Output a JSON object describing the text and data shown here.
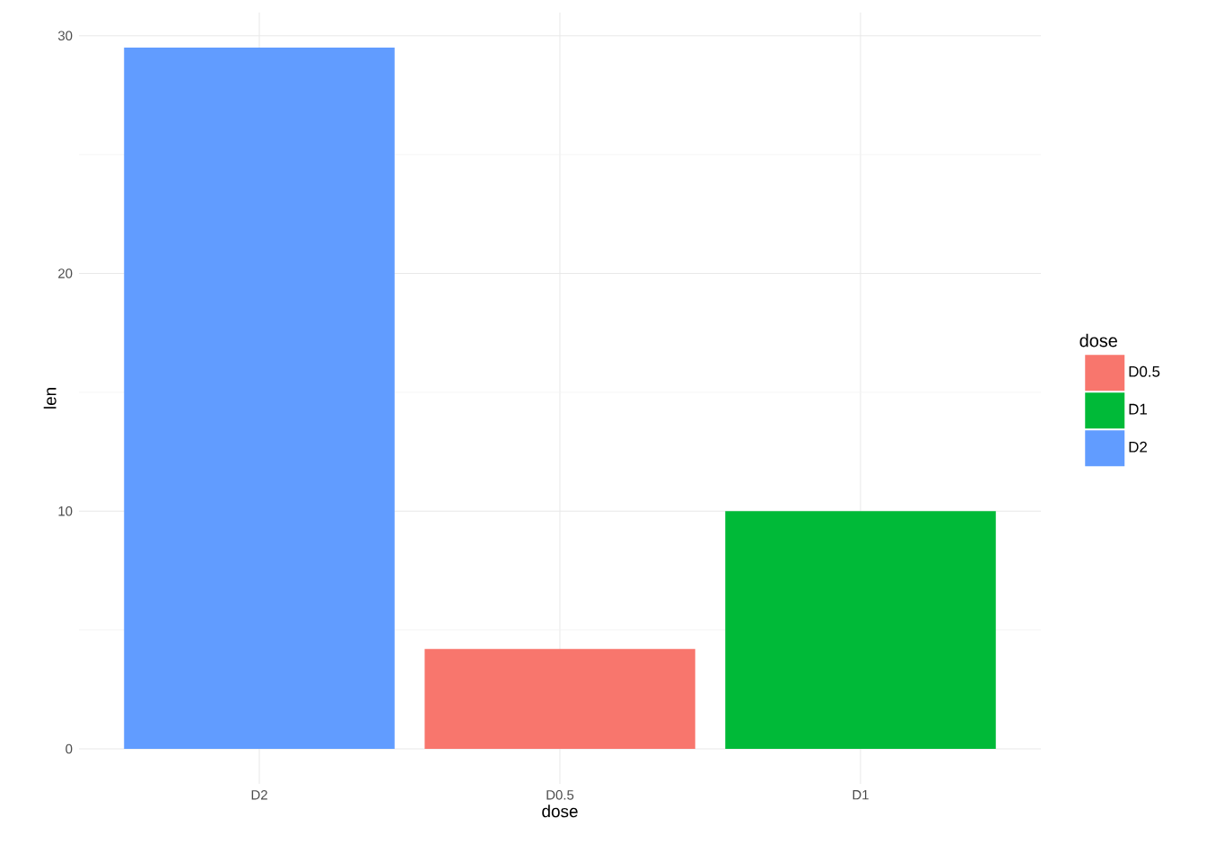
{
  "chart_data": {
    "type": "bar",
    "xlabel": "dose",
    "ylabel": "len",
    "legend_title": "dose",
    "categories": [
      "D2",
      "D0.5",
      "D1"
    ],
    "series": [
      {
        "name": "D0.5",
        "color": "#f8766d",
        "values": [
          null,
          4.2,
          null
        ]
      },
      {
        "name": "D1",
        "color": "#00ba38",
        "values": [
          null,
          null,
          10
        ]
      },
      {
        "name": "D2",
        "color": "#619cff",
        "values": [
          29.5,
          null,
          null
        ]
      }
    ],
    "ylim": [
      -1.475,
      30.975
    ],
    "yticks": [
      0,
      10,
      20,
      30
    ],
    "grid": true,
    "legend": "right"
  }
}
